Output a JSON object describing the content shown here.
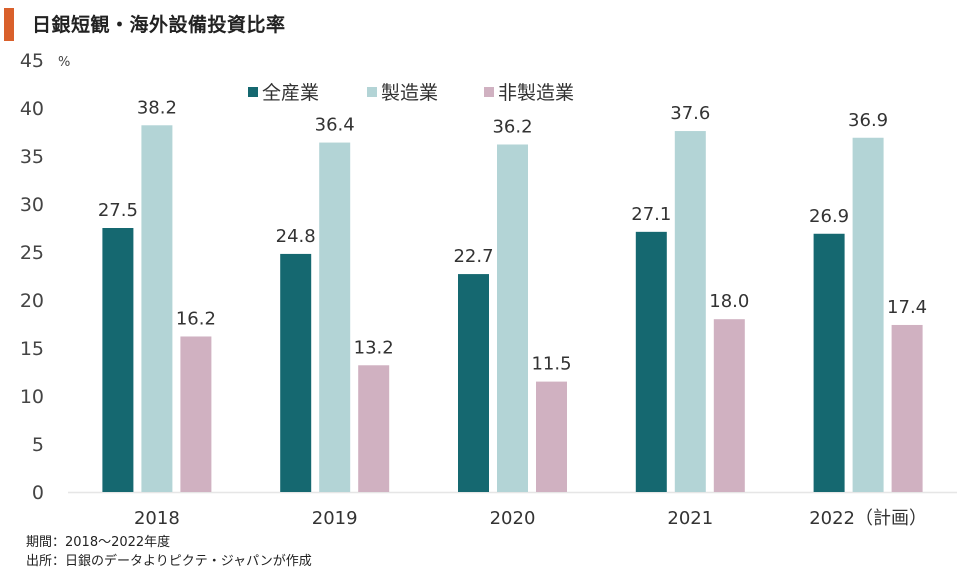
{
  "title": "日銀短観・海外設備投資比率",
  "colors": {
    "accent": "#d9602b",
    "all_industries": "#156870",
    "manufacturing": "#b3d4d6",
    "non_manufacturing": "#d0b1c1",
    "axis": "#e6e6e6"
  },
  "notes": {
    "period": "期間：2018～2022年度",
    "source": "出所：日銀のデータよりピクテ・ジャパンが作成"
  },
  "chart_data": {
    "type": "bar",
    "title": "日銀短観・海外設備投資比率",
    "xlabel": "",
    "ylabel": "%",
    "ylim": [
      0,
      45
    ],
    "yticks": [
      0,
      5,
      10,
      15,
      20,
      25,
      30,
      35,
      40,
      45
    ],
    "grid": false,
    "legend_position": "top-center",
    "categories": [
      "2018",
      "2019",
      "2020",
      "2021",
      "2022（計画）"
    ],
    "series": [
      {
        "name": "全産業",
        "color_key": "all_industries",
        "values": [
          27.5,
          24.8,
          22.7,
          27.1,
          26.9
        ],
        "labels": [
          "27.5",
          "24.8",
          "22.7",
          "27.1",
          "26.9"
        ]
      },
      {
        "name": "製造業",
        "color_key": "manufacturing",
        "values": [
          38.2,
          36.4,
          36.2,
          37.6,
          36.9
        ],
        "labels": [
          "38.2",
          "36.4",
          "36.2",
          "37.6",
          "36.9"
        ]
      },
      {
        "name": "非製造業",
        "color_key": "non_manufacturing",
        "values": [
          16.2,
          13.2,
          11.5,
          18.0,
          17.4
        ],
        "labels": [
          "16.2",
          "13.2",
          "11.5",
          "18.0",
          "17.4"
        ]
      }
    ]
  }
}
